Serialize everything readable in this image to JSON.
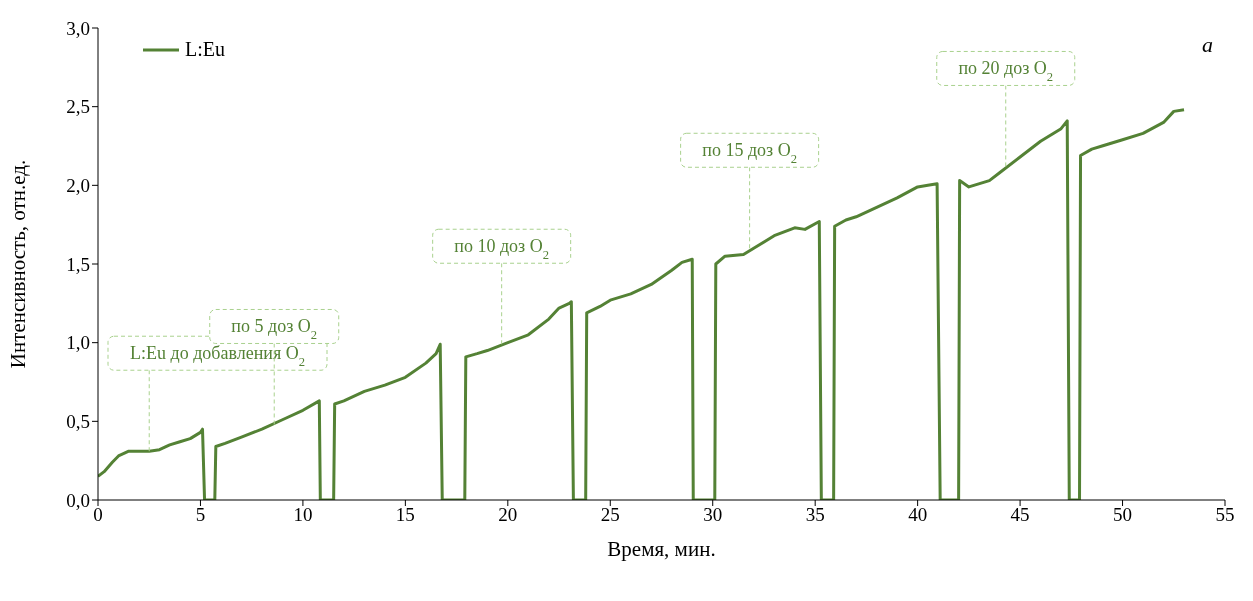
{
  "chart_data": {
    "type": "line",
    "xlabel": "Время, мин.",
    "ylabel": "Интенсивность, отн.ед.",
    "xlim": [
      0,
      55
    ],
    "xticks": [
      0,
      5,
      10,
      15,
      20,
      25,
      30,
      35,
      40,
      45,
      50,
      55
    ],
    "ylim": [
      0,
      3
    ],
    "yticks": [
      {
        "value": 0,
        "label": "0,0"
      },
      {
        "value": 0.5,
        "label": "0,5"
      },
      {
        "value": 1,
        "label": "1,0"
      },
      {
        "value": 1.5,
        "label": "1,5"
      },
      {
        "value": 2,
        "label": "2,0"
      },
      {
        "value": 2.5,
        "label": "2,5"
      },
      {
        "value": 3,
        "label": "3,0"
      }
    ],
    "legend": "top left",
    "grid": false,
    "marker": "none",
    "line_style": "solid",
    "x": [
      0,
      0.3,
      0.7,
      1,
      1.5,
      2,
      2.5,
      3,
      3.5,
      4,
      4.5,
      5,
      5.1,
      5.2,
      5.7,
      5.75,
      6.2,
      7,
      8,
      9,
      10,
      10.8,
      10.85,
      11.5,
      11.55,
      12,
      13,
      14,
      15,
      16,
      16.5,
      16.7,
      16.8,
      17.9,
      17.95,
      18.5,
      19,
      20,
      21,
      22,
      22.5,
      23,
      23.1,
      23.2,
      23.8,
      23.85,
      24.5,
      25,
      26,
      27,
      28,
      28.5,
      29,
      29.05,
      30.1,
      30.15,
      30.6,
      31.5,
      32,
      33,
      34,
      34.5,
      35.2,
      35.3,
      35.9,
      35.95,
      36.5,
      37,
      38,
      39,
      40,
      40.5,
      40.95,
      41.1,
      42,
      42.05,
      42.5,
      43.5,
      44,
      45,
      46,
      47,
      47.3,
      47.4,
      47.9,
      47.95,
      48.5,
      49,
      50,
      51,
      52,
      52.5,
      53
    ],
    "series": [
      {
        "name": "L:Eu",
        "color": "#548235",
        "values": [
          0.15,
          0.18,
          0.24,
          0.28,
          0.31,
          0.31,
          0.31,
          0.32,
          0.35,
          0.37,
          0.39,
          0.43,
          0.45,
          0,
          0,
          0.34,
          0.36,
          0.4,
          0.45,
          0.51,
          0.57,
          0.63,
          0,
          0,
          0.61,
          0.63,
          0.69,
          0.73,
          0.78,
          0.87,
          0.93,
          0.99,
          0,
          0,
          0.91,
          0.93,
          0.95,
          1,
          1.05,
          1.15,
          1.22,
          1.25,
          1.26,
          0,
          0,
          1.19,
          1.23,
          1.27,
          1.31,
          1.37,
          1.46,
          1.51,
          1.53,
          0,
          0,
          1.5,
          1.55,
          1.56,
          1.6,
          1.68,
          1.73,
          1.72,
          1.77,
          0,
          0,
          1.74,
          1.78,
          1.8,
          1.86,
          1.92,
          1.99,
          2,
          2.01,
          0,
          0,
          2.03,
          1.99,
          2.03,
          2.08,
          2.18,
          2.28,
          2.36,
          2.41,
          0,
          0,
          2.19,
          2.23,
          2.25,
          2.29,
          2.33,
          2.4,
          2.47,
          2.48
        ]
      }
    ],
    "annotations": [
      {
        "text": "L:Eu до добавления O$_{2}$",
        "x": 2.5,
        "y": 0.31
      },
      {
        "text": "по 5 доз O$_{2}$",
        "x": 8.6,
        "y": 0.48
      },
      {
        "text": "по 10 доз O$_{2}$",
        "x": 19.7,
        "y": 0.99
      },
      {
        "text": "по 15 доз O$_{2}$",
        "x": 31.8,
        "y": 1.6
      },
      {
        "text": "по 20 доз O$_{2}$",
        "x": 44.3,
        "y": 2.12
      },
      "a"
    ]
  }
}
